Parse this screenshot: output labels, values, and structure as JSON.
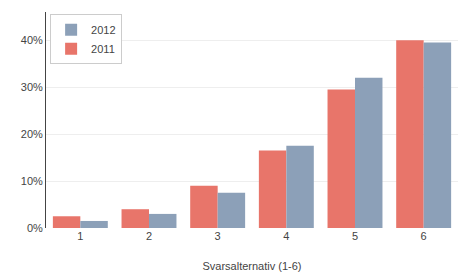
{
  "chart_data": {
    "type": "bar",
    "categories": [
      1,
      2,
      3,
      4,
      5,
      6
    ],
    "series": [
      {
        "name": "2011",
        "color": "#e8756a",
        "values": [
          0.025,
          0.04,
          0.09,
          0.165,
          0.295,
          0.4
        ]
      },
      {
        "name": "2012",
        "color": "#8ca0b8",
        "values": [
          0.015,
          0.03,
          0.075,
          0.175,
          0.32,
          0.395
        ]
      }
    ],
    "xlabel": "Svarsalternativ (1-6)",
    "ylim": [
      0,
      0.46
    ],
    "yticks": [
      {
        "value": 0.0,
        "label": "0%"
      },
      {
        "value": 0.1,
        "label": "10%"
      },
      {
        "value": 0.2,
        "label": "20%"
      },
      {
        "value": 0.3,
        "label": "30%"
      },
      {
        "value": 0.4,
        "label": "40%"
      }
    ],
    "grid": true,
    "legend": "upper left"
  }
}
